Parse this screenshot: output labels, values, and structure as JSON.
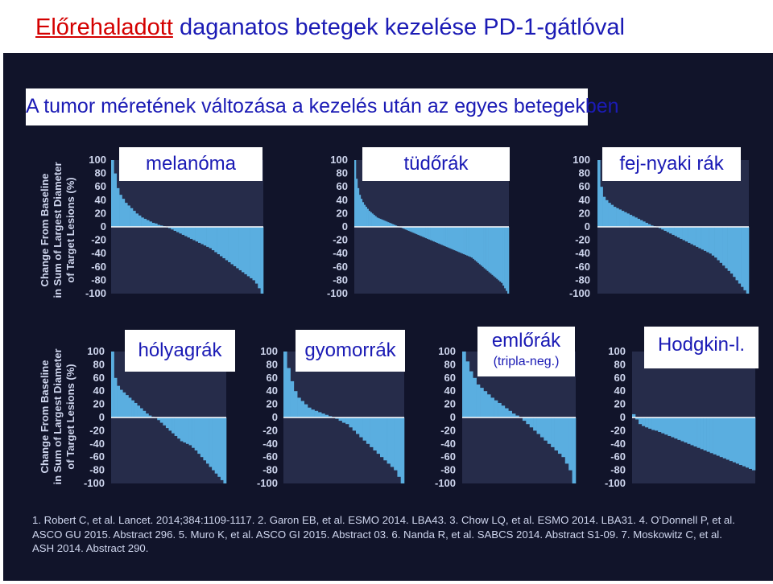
{
  "slide": {
    "title_highlight": "Előrehaladott",
    "title_rest": " daganatos betegek kezelése PD-1-gátlóval",
    "subtitle": "A tumor méretének változása a kezelés után az egyes betegekben",
    "yaxis_title_lines": [
      "Change From Baseline",
      "in Sum of Largest Diameter",
      "of Target Lesions (%)"
    ],
    "references": "1. Robert C, et al. Lancet. 2014;384:1109-1117. 2. Garon EB, et al. ESMO 2014. LBA43. 3. Chow LQ, et al. ESMO 2014. LBA31. 4. O’Donnell P, et al. ASCO GU 2015. Abstract 296. 5. Muro K, et al. ASCO GI 2015. Abstract 03. 6. Nanda R, et al. SABCS 2014. Abstract S1-09. 7. Moskowitz C, et al. ASH 2014. Abstract 290."
  },
  "colors": {
    "title_blue": "#1b1bb5",
    "title_red": "#d40000",
    "panel_bg": "#11142a",
    "bar_fill": "#5aaee0",
    "axis_text": "#cfd6ee"
  },
  "chart_data": [
    {
      "type": "bar",
      "label": "melanóma",
      "ylim": [
        -100,
        100
      ],
      "yticks": [
        100,
        80,
        60,
        40,
        20,
        0,
        -20,
        -40,
        -60,
        -80,
        -100
      ],
      "values": [
        100,
        80,
        58,
        48,
        42,
        36,
        32,
        28,
        24,
        20,
        17,
        14,
        12,
        10,
        8,
        6,
        5,
        3,
        2,
        1,
        0,
        -2,
        -4,
        -6,
        -8,
        -10,
        -12,
        -14,
        -16,
        -18,
        -20,
        -22,
        -24,
        -26,
        -28,
        -30,
        -32,
        -35,
        -38,
        -41,
        -44,
        -47,
        -50,
        -53,
        -56,
        -59,
        -62,
        -65,
        -68,
        -71,
        -74,
        -77,
        -80,
        -85,
        -92,
        -100
      ]
    },
    {
      "type": "bar",
      "label": "tüdőrák",
      "ylim": [
        -100,
        100
      ],
      "yticks": [
        100,
        80,
        60,
        40,
        20,
        0,
        -20,
        -40,
        -60,
        -80,
        -100
      ],
      "values": [
        100,
        72,
        58,
        48,
        42,
        37,
        33,
        30,
        27,
        24,
        22,
        20,
        18,
        16,
        14,
        13,
        12,
        11,
        10,
        9,
        8,
        7,
        6,
        5,
        4,
        3,
        2,
        1,
        0,
        -1,
        -2,
        -3,
        -4,
        -5,
        -6,
        -7,
        -8,
        -9,
        -10,
        -11,
        -12,
        -13,
        -14,
        -15,
        -16,
        -17,
        -18,
        -19,
        -20,
        -21,
        -22,
        -23,
        -24,
        -25,
        -26,
        -27,
        -28,
        -29,
        -30,
        -31,
        -32,
        -33,
        -34,
        -35,
        -36,
        -37,
        -38,
        -39,
        -40,
        -41,
        -42,
        -43,
        -44,
        -45,
        -46,
        -48,
        -50,
        -52,
        -54,
        -56,
        -58,
        -60,
        -62,
        -64,
        -66,
        -68,
        -70,
        -72,
        -74,
        -76,
        -78,
        -80,
        -82,
        -84,
        -88,
        -92,
        -96,
        -100
      ]
    },
    {
      "type": "bar",
      "label": "fej-nyaki rák",
      "ylim": [
        -100,
        100
      ],
      "yticks": [
        100,
        80,
        60,
        40,
        20,
        0,
        -20,
        -40,
        -60,
        -80,
        -100
      ],
      "values": [
        100,
        60,
        45,
        40,
        36,
        33,
        30,
        28,
        26,
        24,
        22,
        20,
        18,
        16,
        14,
        12,
        10,
        8,
        6,
        4,
        2,
        1,
        0,
        -2,
        -4,
        -6,
        -8,
        -10,
        -12,
        -14,
        -16,
        -18,
        -20,
        -22,
        -24,
        -26,
        -28,
        -30,
        -32,
        -34,
        -36,
        -38,
        -40,
        -43,
        -46,
        -50,
        -54,
        -58,
        -62,
        -66,
        -70,
        -75,
        -80,
        -85,
        -90,
        -95,
        -100
      ]
    },
    {
      "type": "bar",
      "label": "hólyagrák",
      "ylim": [
        -100,
        100
      ],
      "yticks": [
        100,
        80,
        60,
        40,
        20,
        0,
        -20,
        -40,
        -60,
        -80,
        -100
      ],
      "values": [
        100,
        60,
        48,
        42,
        38,
        34,
        30,
        26,
        22,
        18,
        14,
        10,
        6,
        3,
        1,
        0,
        -4,
        -8,
        -12,
        -16,
        -20,
        -24,
        -28,
        -32,
        -36,
        -38,
        -40,
        -42,
        -46,
        -50,
        -55,
        -60,
        -65,
        -70,
        -75,
        -80,
        -85,
        -90,
        -95,
        -100
      ]
    },
    {
      "type": "bar",
      "label": "gyomorrák",
      "ylim": [
        -100,
        100
      ],
      "yticks": [
        100,
        80,
        60,
        40,
        20,
        0,
        -20,
        -40,
        -60,
        -80,
        -100
      ],
      "values": [
        100,
        75,
        55,
        40,
        30,
        25,
        20,
        15,
        12,
        10,
        8,
        6,
        4,
        2,
        0,
        -2,
        -5,
        -8,
        -10,
        -15,
        -20,
        -25,
        -30,
        -35,
        -40,
        -45,
        -50,
        -55,
        -60,
        -65,
        -70,
        -75,
        -80,
        -90,
        -100
      ]
    },
    {
      "type": "bar",
      "label": "emlőrák",
      "sublabel": "(tripla-neg.)",
      "ylim": [
        -100,
        100
      ],
      "yticks": [
        100,
        80,
        60,
        40,
        20,
        0,
        -20,
        -40,
        -60,
        -80,
        -100
      ],
      "values": [
        100,
        85,
        70,
        60,
        50,
        45,
        40,
        35,
        30,
        26,
        22,
        18,
        14,
        10,
        6,
        3,
        0,
        -5,
        -10,
        -15,
        -20,
        -25,
        -30,
        -35,
        -40,
        -45,
        -50,
        -55,
        -60,
        -70,
        -80,
        -100
      ]
    },
    {
      "type": "bar",
      "label": "Hodgkin-l.",
      "ylim": [
        -100,
        100
      ],
      "yticks": [
        100,
        80,
        60,
        40,
        20,
        0,
        -20,
        -40,
        -60,
        -80,
        -100
      ],
      "values": [
        5,
        -3,
        -10,
        -13,
        -15,
        -17,
        -19,
        -20,
        -22,
        -24,
        -26,
        -28,
        -30,
        -32,
        -34,
        -36,
        -38,
        -40,
        -42,
        -44,
        -46,
        -48,
        -50,
        -52,
        -54,
        -56,
        -58,
        -60,
        -62,
        -64,
        -66,
        -68,
        -70,
        -72,
        -74,
        -76,
        -78,
        -80
      ]
    }
  ]
}
